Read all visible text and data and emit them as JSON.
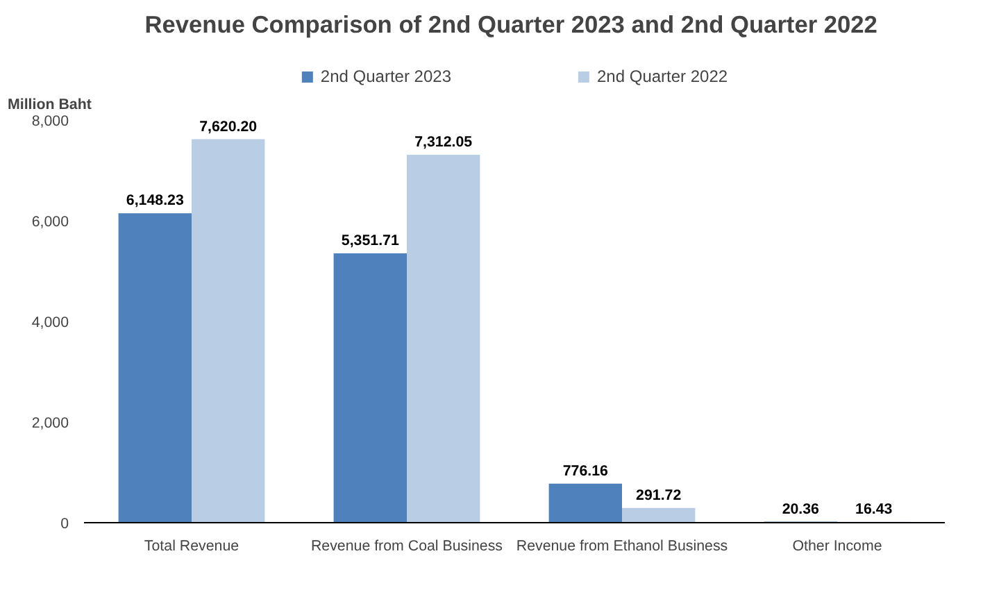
{
  "chart_data": {
    "type": "bar",
    "title": "Revenue Comparison  of 2nd Quarter 2023 and 2nd Quarter 2022",
    "ylabel": "Million Baht",
    "categories": [
      "Total Revenue",
      "Revenue from Coal Business",
      "Revenue from Ethanol Business",
      "Other Income"
    ],
    "series": [
      {
        "name": "2nd Quarter 2023",
        "color": "#4f81bd",
        "values": [
          6148.23,
          5351.71,
          776.16,
          20.36
        ],
        "value_labels": [
          "6,148.23",
          "5,351.71",
          "776.16",
          "20.36"
        ]
      },
      {
        "name": "2nd Quarter 2022",
        "color": "#b9cde5",
        "values": [
          7620.2,
          7312.05,
          291.72,
          16.43
        ],
        "value_labels": [
          "7,620.20",
          "7,312.05",
          "291.72",
          "16.43"
        ]
      }
    ],
    "ylim": [
      0,
      8000
    ],
    "yticks": [
      0,
      {
        "value": 2000,
        "label": "2,000"
      },
      {
        "value": 4000,
        "label": "4,000"
      },
      {
        "value": 6000,
        "label": "6,000"
      },
      {
        "value": 8000,
        "label": "8,000"
      }
    ],
    "legend": "top",
    "grid": false
  }
}
